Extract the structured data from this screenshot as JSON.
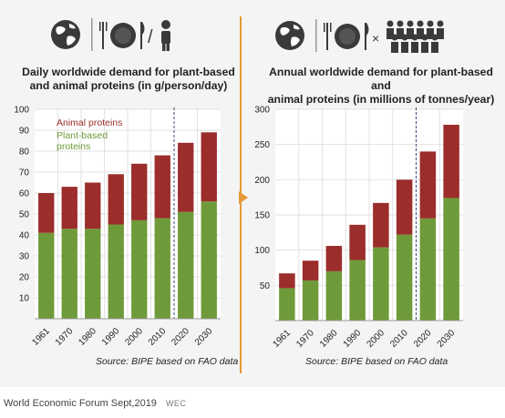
{
  "footer": {
    "credit": "World Economic Forum Sept,2019",
    "tag": "WEC"
  },
  "icons": {
    "left": [
      "globe-icon",
      "fork-plate-knife-icon",
      "person-icon"
    ],
    "right": [
      "globe-icon",
      "fork-plate-knife-icon",
      "crowd-icon"
    ],
    "left_separator": "/",
    "right_separator": "×"
  },
  "colors": {
    "animal": "#9b2d2b",
    "plant": "#6f9a3a",
    "grid": "#e2e2e2",
    "divider": "#e59a36"
  },
  "chart_data": [
    {
      "type": "bar",
      "stacked": true,
      "title": "Daily worldwide demand for plant-based and animal proteins (in g/person/day)",
      "title_lines": [
        "Daily worldwide demand for plant-based",
        "and animal proteins (in g/person/day)"
      ],
      "source": "Source: BIPE based on FAO data",
      "categories": [
        "1961",
        "1970",
        "1980",
        "1990",
        "2000",
        "2010",
        "2020",
        "2030"
      ],
      "series": [
        {
          "name": "Plant-based proteins",
          "label_lines": [
            "Plant-based",
            "proteins"
          ],
          "values": [
            41,
            43,
            43,
            45,
            47,
            48,
            51,
            56
          ]
        },
        {
          "name": "Animal proteins",
          "label_lines": [
            "Animal proteins"
          ],
          "values": [
            19,
            20,
            22,
            24,
            27,
            30,
            33,
            33
          ]
        }
      ],
      "ylim": [
        0,
        100
      ],
      "yticks": [
        10,
        20,
        30,
        40,
        50,
        60,
        70,
        80,
        90,
        100
      ],
      "projection_divider_between": [
        "2010",
        "2020"
      ],
      "legend_position": "inside-top-left",
      "grid": true
    },
    {
      "type": "bar",
      "stacked": true,
      "title": "Annual worldwide demand for plant-based and animal proteins (in millions of tonnes/year)",
      "title_lines": [
        "Annual worldwide demand for plant-based and",
        "animal proteins (in millions of tonnes/year)"
      ],
      "source": "Source: BIPE based on FAO data",
      "categories": [
        "1961",
        "1970",
        "1980",
        "1990",
        "2000",
        "2010",
        "2020",
        "2030"
      ],
      "series": [
        {
          "name": "Plant-based proteins",
          "values": [
            46,
            57,
            70,
            86,
            104,
            122,
            145,
            174
          ]
        },
        {
          "name": "Animal proteins",
          "values": [
            21,
            28,
            36,
            50,
            63,
            78,
            95,
            104
          ]
        }
      ],
      "ylim": [
        0,
        300
      ],
      "yticks": [
        50,
        100,
        150,
        200,
        250,
        300
      ],
      "projection_divider_between": [
        "2010",
        "2020"
      ],
      "grid": true
    }
  ]
}
